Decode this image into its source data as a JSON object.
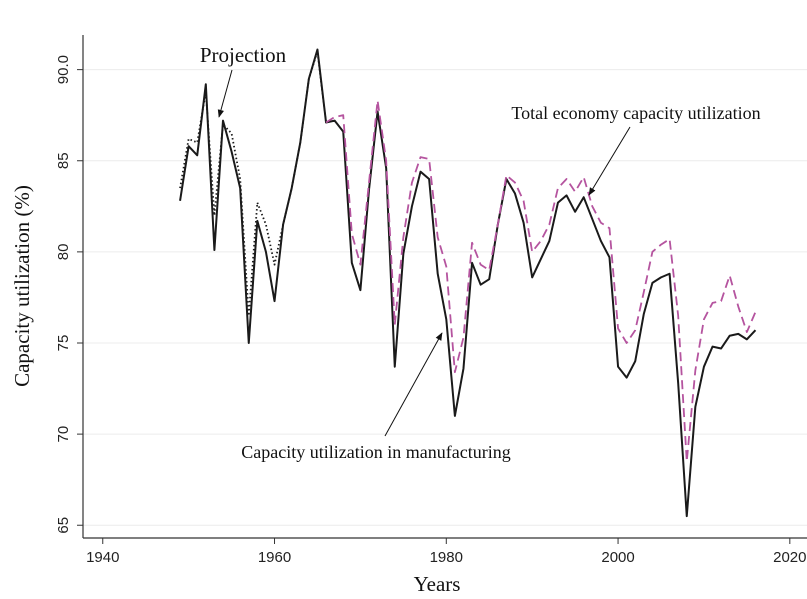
{
  "chart_data": {
    "type": "line",
    "xlabel": "Years",
    "ylabel": "Capacity utilization (%)",
    "x": [
      1949,
      1950,
      1951,
      1952,
      1953,
      1954,
      1955,
      1956,
      1957,
      1958,
      1959,
      1960,
      1961,
      1962,
      1963,
      1964,
      1965,
      1966,
      1967,
      1968,
      1969,
      1970,
      1971,
      1972,
      1973,
      1974,
      1975,
      1976,
      1977,
      1978,
      1979,
      1980,
      1981,
      1982,
      1983,
      1984,
      1985,
      1986,
      1987,
      1988,
      1989,
      1990,
      1991,
      1992,
      1993,
      1994,
      1995,
      1996,
      1997,
      1998,
      1999,
      2000,
      2001,
      2002,
      2003,
      2004,
      2005,
      2006,
      2007,
      2008,
      2009,
      2010,
      2011,
      2012,
      2013,
      2014,
      2015,
      2016
    ],
    "series": [
      {
        "name": "Capacity utilization in manufacturing",
        "color": "#1a1a1a",
        "dash": "solid",
        "values": [
          82.8,
          85.8,
          85.3,
          89.2,
          80.1,
          87.2,
          85.5,
          83.5,
          75.0,
          81.7,
          80.0,
          77.3,
          81.5,
          83.5,
          86.0,
          89.5,
          91.1,
          87.1,
          87.2,
          86.6,
          79.4,
          77.9,
          83.4,
          87.7,
          84.6,
          73.7,
          79.9,
          82.5,
          84.4,
          84.0,
          78.8,
          76.3,
          71.0,
          73.6,
          79.4,
          78.2,
          78.5,
          81.5,
          84.0,
          83.2,
          81.6,
          78.6,
          79.6,
          80.6,
          82.7,
          83.1,
          82.2,
          83.0,
          81.8,
          80.6,
          79.7,
          73.7,
          73.1,
          74.0,
          76.6,
          78.3,
          78.6,
          78.8,
          72.8,
          65.5,
          71.5,
          73.7,
          74.8,
          74.7,
          75.4,
          75.5,
          75.2,
          75.7
        ]
      },
      {
        "name": "Projection",
        "color": "#1a1a1a",
        "dash": "dotted",
        "values": [
          83.5,
          86.2,
          86.0,
          88.8,
          82.0,
          87.0,
          86.5,
          84.0,
          76.5,
          82.7,
          81.5,
          79.3,
          81.5,
          83.5,
          86.0,
          89.5,
          91.0,
          87.1,
          null,
          null,
          null,
          null,
          null,
          null,
          null,
          null,
          null,
          null,
          null,
          null,
          null,
          null,
          null,
          null,
          null,
          null,
          null,
          null,
          null,
          null,
          null,
          null,
          null,
          null,
          null,
          null,
          null,
          null,
          null,
          null,
          null,
          null,
          null,
          null,
          null,
          null,
          null,
          null,
          null,
          null,
          null,
          null,
          null,
          null,
          null,
          null,
          null,
          null
        ]
      },
      {
        "name": "Total economy capacity utilization",
        "color": "#b5549f",
        "dash": "dashed",
        "values": [
          null,
          null,
          null,
          null,
          null,
          null,
          null,
          null,
          null,
          null,
          null,
          null,
          null,
          null,
          null,
          null,
          null,
          87.1,
          87.4,
          87.5,
          81.0,
          79.3,
          83.8,
          88.3,
          85.0,
          76.0,
          80.8,
          83.8,
          85.2,
          85.1,
          80.8,
          79.2,
          73.4,
          75.3,
          80.5,
          79.3,
          79.0,
          81.5,
          84.2,
          83.8,
          82.8,
          80.0,
          80.6,
          81.5,
          83.5,
          84.0,
          83.3,
          84.1,
          82.5,
          81.6,
          81.3,
          75.8,
          75.0,
          75.7,
          77.8,
          80.0,
          80.4,
          80.7,
          76.5,
          68.5,
          73.5,
          76.3,
          77.2,
          77.3,
          78.7,
          77.0,
          75.6,
          76.7
        ]
      }
    ],
    "xlim": [
      1937.7,
      2022
    ],
    "ylim": [
      64.3,
      91.9
    ],
    "xticks": [
      1940,
      1960,
      1980,
      2000,
      2020
    ],
    "yticks": [
      {
        "value": 65,
        "label": "65"
      },
      {
        "value": 70,
        "label": "70"
      },
      {
        "value": 75,
        "label": "75"
      },
      {
        "value": 80,
        "label": "80"
      },
      {
        "value": 85,
        "label": "85"
      },
      {
        "value": 90,
        "label": "90.0"
      }
    ],
    "grid": true
  }
}
